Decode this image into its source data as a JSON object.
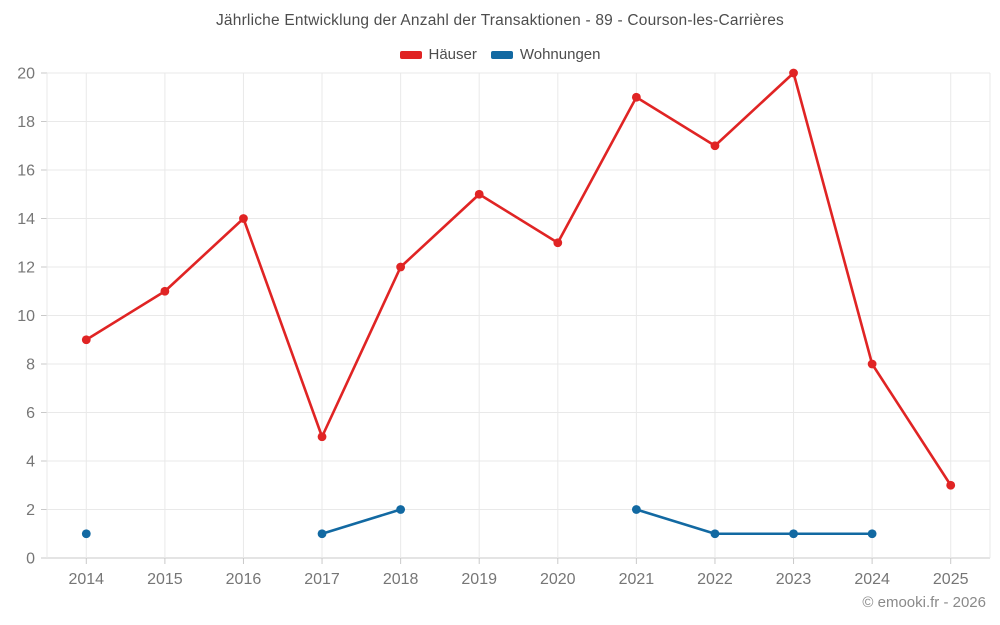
{
  "title": "Jährliche Entwicklung der Anzahl der Transaktionen - 89 - Courson-les-Carrières",
  "footer": {
    "copyright": "© emooki.fr - 2026"
  },
  "chart_data": {
    "type": "line",
    "x": [
      "2014",
      "2015",
      "2016",
      "2017",
      "2018",
      "2019",
      "2020",
      "2021",
      "2022",
      "2023",
      "2024",
      "2025"
    ],
    "series": [
      {
        "name": "Häuser",
        "color": "#e02424",
        "values": [
          9,
          11,
          14,
          5,
          12,
          15,
          13,
          19,
          17,
          20,
          8,
          3
        ]
      },
      {
        "name": "Wohnungen",
        "color": "#1269a2",
        "values": [
          1,
          null,
          null,
          1,
          2,
          null,
          null,
          2,
          1,
          1,
          1,
          null
        ]
      }
    ],
    "ylim": [
      0,
      20
    ],
    "ytick_step": 2,
    "yticks": [
      0,
      2,
      4,
      6,
      8,
      10,
      12,
      14,
      16,
      18,
      20
    ],
    "grid": true,
    "legend_position": "top",
    "xlabel": "",
    "ylabel": ""
  },
  "style_colors": {
    "grid": "#e9e9e9",
    "axis_line": "#c9c9c9",
    "tick": "#c9c9c9",
    "axis_label": "#767676"
  }
}
